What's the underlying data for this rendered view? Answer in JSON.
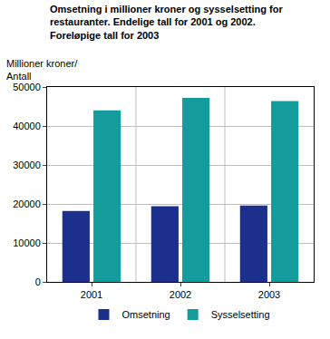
{
  "chart_data": {
    "type": "bar",
    "title": "Omsetning i millioner kroner og sysselsetting for restauranter. Endelige tall for 2001 og 2002. Foreløpige tall for 2003",
    "y_label": "Millioner kroner/\nAntall",
    "categories": [
      "2001",
      "2002",
      "2003"
    ],
    "series": [
      {
        "name": "Omsetning",
        "color": "#1c2f8c",
        "values": [
          18200,
          19400,
          19600
        ]
      },
      {
        "name": "Sysselsetting",
        "color": "#149b9b",
        "values": [
          44000,
          47200,
          46400
        ]
      }
    ],
    "ylim": [
      0,
      50000
    ],
    "yticks": [
      0,
      10000,
      20000,
      30000,
      40000,
      50000
    ],
    "grid": true,
    "legend": "bottom"
  }
}
